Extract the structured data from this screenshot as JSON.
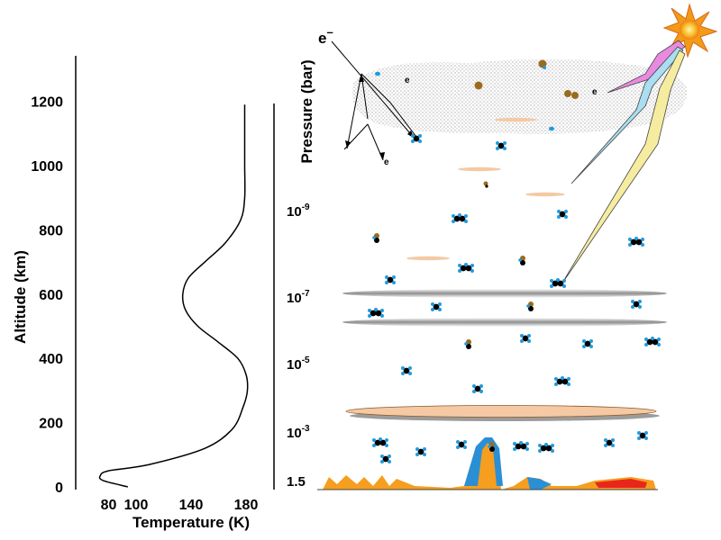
{
  "temperature_panel": {
    "y_axis_label": "Altitude (km)",
    "x_axis_label": "Temperature (K)",
    "y_ticks": [
      "0",
      "200",
      "400",
      "600",
      "800",
      "1000",
      "1200"
    ],
    "x_ticks": [
      "80",
      "100",
      "140",
      "180"
    ],
    "profile_label": ""
  },
  "pressure_panel": {
    "axis_label": "Pressure (bar)",
    "ticks": [
      {
        "base": "10",
        "exp": "-9"
      },
      {
        "base": "10",
        "exp": "-7"
      },
      {
        "base": "10",
        "exp": "-5"
      },
      {
        "base": "10",
        "exp": "-3"
      },
      {
        "base": "1.5",
        "exp": ""
      }
    ]
  },
  "particles": {
    "electron_main": "e",
    "electron_minus": "–",
    "electron_small": [
      "e",
      "e",
      "e"
    ]
  },
  "colors": {
    "sun": "#f7a21b",
    "haze": "#e6e6e6",
    "cloud_orange": "#f4c9a3",
    "cloud_gray": "#c8c8c8",
    "molecule_blue": "#1f9be0",
    "molecule_brown": "#9a6a1e",
    "beam_pink": "#e98ae0",
    "beam_blue": "#a9dff0",
    "beam_yellow": "#f6eca0",
    "lake_blue": "#2b8fd6",
    "ground_orange": "#f59e1f",
    "ground_red": "#e8261c"
  },
  "chart_data": {
    "type": "line",
    "title": "",
    "xlabel": "Temperature (K)",
    "ylabel": "Altitude (km)",
    "xlim": [
      60,
      200
    ],
    "ylim": [
      0,
      1350
    ],
    "x_ticks": [
      80,
      100,
      140,
      180
    ],
    "y_ticks": [
      0,
      200,
      400,
      600,
      800,
      1000,
      1200
    ],
    "grid": false,
    "series": [
      {
        "x": [
          94,
          76,
          74,
          80,
          110,
          150,
          170,
          178,
          181,
          180,
          174,
          160,
          145,
          136,
          134,
          138,
          150,
          165,
          176,
          179,
          179,
          179,
          179
        ],
        "y": [
          0,
          20,
          35,
          50,
          70,
          120,
          180,
          250,
          300,
          350,
          400,
          450,
          500,
          550,
          600,
          650,
          700,
          760,
          830,
          900,
          1000,
          1100,
          1190
        ]
      }
    ]
  }
}
